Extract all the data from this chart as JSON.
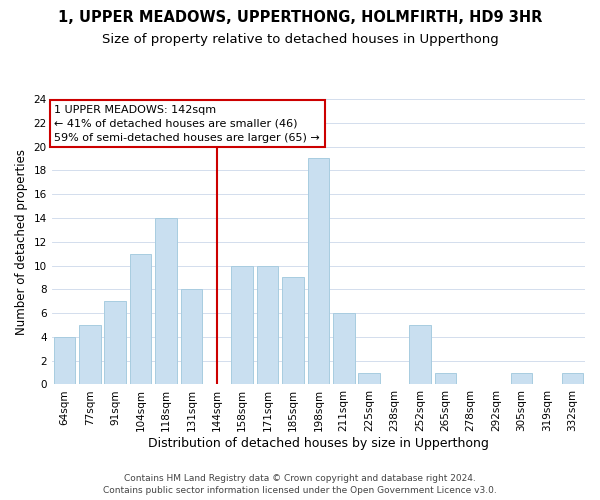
{
  "title1": "1, UPPER MEADOWS, UPPERTHONG, HOLMFIRTH, HD9 3HR",
  "title2": "Size of property relative to detached houses in Upperthong",
  "xlabel": "Distribution of detached houses by size in Upperthong",
  "ylabel": "Number of detached properties",
  "bar_labels": [
    "64sqm",
    "77sqm",
    "91sqm",
    "104sqm",
    "118sqm",
    "131sqm",
    "144sqm",
    "158sqm",
    "171sqm",
    "185sqm",
    "198sqm",
    "211sqm",
    "225sqm",
    "238sqm",
    "252sqm",
    "265sqm",
    "278sqm",
    "292sqm",
    "305sqm",
    "319sqm",
    "332sqm"
  ],
  "bar_values": [
    4,
    5,
    7,
    11,
    14,
    8,
    0,
    10,
    10,
    9,
    19,
    6,
    1,
    0,
    5,
    1,
    0,
    0,
    1,
    0,
    1
  ],
  "bar_color": "#c9dff0",
  "bar_edge_color": "#a8cce0",
  "vline_x_idx": 6,
  "vline_color": "#cc0000",
  "annotation_title": "1 UPPER MEADOWS: 142sqm",
  "annotation_line1": "← 41% of detached houses are smaller (46)",
  "annotation_line2": "59% of semi-detached houses are larger (65) →",
  "annotation_box_color": "#ffffff",
  "annotation_box_edge": "#cc0000",
  "ylim": [
    0,
    24
  ],
  "yticks": [
    0,
    2,
    4,
    6,
    8,
    10,
    12,
    14,
    16,
    18,
    20,
    22,
    24
  ],
  "footer1": "Contains HM Land Registry data © Crown copyright and database right 2024.",
  "footer2": "Contains public sector information licensed under the Open Government Licence v3.0.",
  "title1_fontsize": 10.5,
  "title2_fontsize": 9.5,
  "xlabel_fontsize": 9,
  "ylabel_fontsize": 8.5,
  "tick_fontsize": 7.5,
  "annotation_fontsize": 8,
  "footer_fontsize": 6.5
}
